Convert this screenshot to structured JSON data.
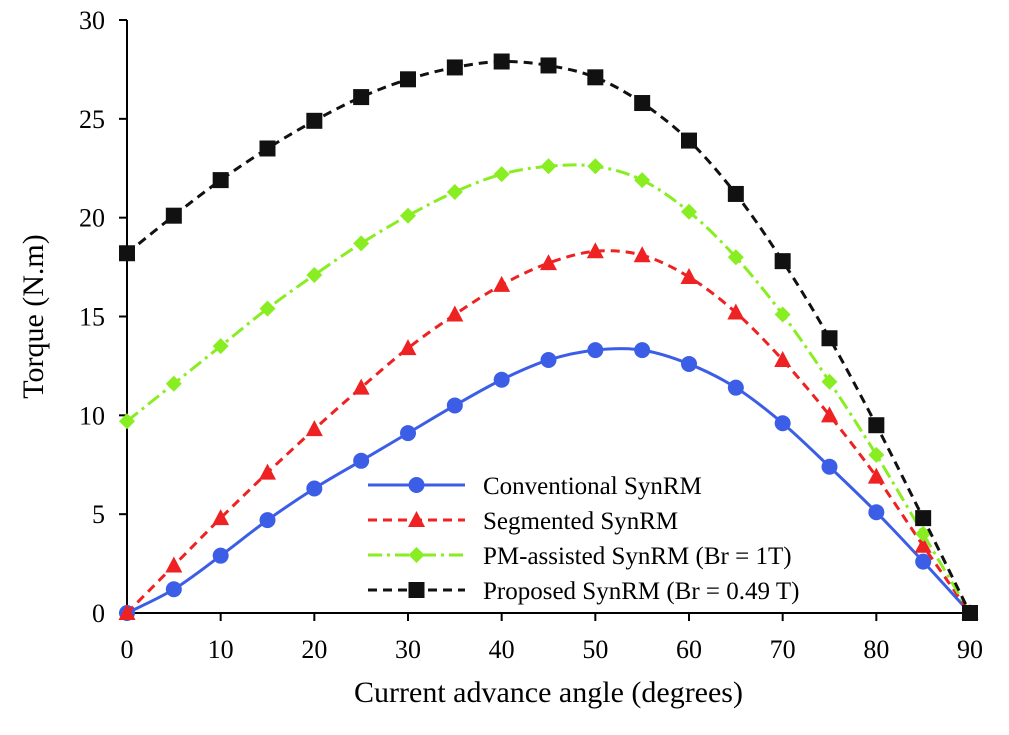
{
  "chart_data": {
    "type": "line",
    "title": "",
    "xlabel": "Current advance angle (degrees)",
    "ylabel": "Torque (N.m)",
    "xlim": [
      0,
      90
    ],
    "ylim": [
      0,
      30
    ],
    "xticks": [
      0,
      10,
      20,
      30,
      40,
      50,
      60,
      70,
      80,
      90
    ],
    "yticks": [
      0,
      5,
      10,
      15,
      20,
      25,
      30
    ],
    "grid": false,
    "legend_position": "bottom-center",
    "x": [
      0,
      5,
      10,
      15,
      20,
      25,
      30,
      35,
      40,
      45,
      50,
      55,
      60,
      65,
      70,
      75,
      80,
      85,
      90
    ],
    "series": [
      {
        "name": "Conventional SynRM",
        "color": "#3c5ee6",
        "line_style": "solid",
        "marker": "circle",
        "values": [
          0,
          1.2,
          2.9,
          4.7,
          6.3,
          7.7,
          9.1,
          10.5,
          11.8,
          12.8,
          13.3,
          13.3,
          12.6,
          11.4,
          9.6,
          7.4,
          5.1,
          2.6,
          0
        ]
      },
      {
        "name": "Segmented SynRM",
        "color": "#ee2222",
        "line_style": "dashed",
        "marker": "triangle",
        "values": [
          0,
          2.4,
          4.8,
          7.1,
          9.3,
          11.4,
          13.4,
          15.1,
          16.6,
          17.7,
          18.3,
          18.1,
          17.0,
          15.2,
          12.8,
          10.0,
          6.9,
          3.4,
          0
        ]
      },
      {
        "name": "PM-assisted SynRM (Br = 1T)",
        "color": "#88ee22",
        "line_style": "dash-dot",
        "marker": "diamond",
        "values": [
          9.7,
          11.6,
          13.5,
          15.4,
          17.1,
          18.7,
          20.1,
          21.3,
          22.2,
          22.6,
          22.6,
          21.9,
          20.3,
          18.0,
          15.1,
          11.7,
          8.0,
          4.0,
          0
        ]
      },
      {
        "name": "Proposed SynRM (Br = 0.49 T)",
        "color": "#111111",
        "line_style": "dashed",
        "marker": "square",
        "values": [
          18.2,
          20.1,
          21.9,
          23.5,
          24.9,
          26.1,
          27.0,
          27.6,
          27.9,
          27.7,
          27.1,
          25.8,
          23.9,
          21.2,
          17.8,
          13.9,
          9.5,
          4.8,
          0
        ]
      }
    ]
  }
}
